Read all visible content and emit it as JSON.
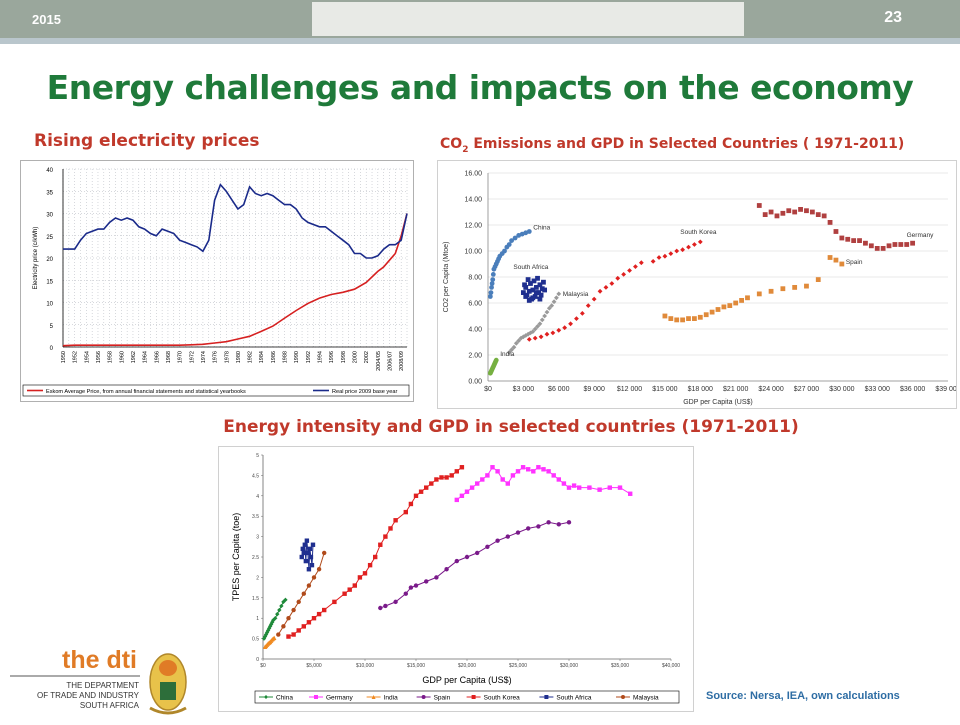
{
  "header": {
    "year": "2015",
    "page_number": "23"
  },
  "title": "Energy challenges and impacts on the economy",
  "chart1_heading": "Rising electricity prices",
  "chart2_heading_prefix": "CO",
  "chart2_heading_sub": "2",
  "chart2_heading_suffix": " Emissions  and  GPD in Selected Countries  ( 1971-2011)",
  "chart3_heading": "Energy intensity and GPD in selected countries (1971-2011)",
  "source": "Source: Nersa, IEA, own calculations",
  "logo": {
    "name": "the dti",
    "line1": "THE DEPARTMENT",
    "line2": "OF TRADE AND INDUSTRY",
    "line3": "SOUTH AFRICA"
  },
  "colors": {
    "title_green": "#1f7a3a",
    "heading_red": "#c0392b",
    "source_blue": "#2e6da4",
    "dti_orange": "#e07b26"
  },
  "chart_data": [
    {
      "type": "line",
      "ylabel": "Electricity price (c/kWh)",
      "ylim": [
        0,
        40
      ],
      "yticks": [
        0,
        5,
        10,
        15,
        20,
        25,
        30,
        35,
        40
      ],
      "categories": [
        "1950",
        "1952",
        "1954",
        "1956",
        "1958",
        "1960",
        "1962",
        "1964",
        "1966",
        "1968",
        "1970",
        "1972",
        "1974",
        "1976",
        "1978",
        "1980",
        "1982",
        "1984",
        "1986",
        "1988",
        "1990",
        "1992",
        "1994",
        "1996",
        "1998",
        "2000",
        "2002",
        "2004/05",
        "2006/07",
        "2008/09"
      ],
      "legend_position": "bottom",
      "series": [
        {
          "name": "Eskom Average Price, from annual financial statements and statistical yearbooks",
          "color": "#d62020",
          "x": [
            1950,
            1952,
            1954,
            1956,
            1958,
            1960,
            1962,
            1964,
            1966,
            1968,
            1970,
            1972,
            1974,
            1976,
            1978,
            1980,
            1982,
            1984,
            1986,
            1988,
            1990,
            1992,
            1994,
            1996,
            1998,
            2000,
            2002,
            2004,
            2005,
            2006,
            2007,
            2008,
            2009
          ],
          "values": [
            0.3,
            0.4,
            0.4,
            0.4,
            0.4,
            0.4,
            0.4,
            0.4,
            0.4,
            0.4,
            0.4,
            0.5,
            0.6,
            0.9,
            1.2,
            1.8,
            2.4,
            3.5,
            4.7,
            6.5,
            8.2,
            9.8,
            11.0,
            11.8,
            12.3,
            13.0,
            14.5,
            17.0,
            18.0,
            19.5,
            21.0,
            25.0,
            30.0
          ]
        },
        {
          "name": "Real price 2009 base year",
          "color": "#1a2a8a",
          "x": [
            1950,
            1951,
            1952,
            1953,
            1954,
            1955,
            1956,
            1957,
            1958,
            1959,
            1960,
            1961,
            1962,
            1963,
            1964,
            1965,
            1966,
            1967,
            1968,
            1969,
            1970,
            1971,
            1972,
            1973,
            1974,
            1975,
            1976,
            1977,
            1978,
            1979,
            1980,
            1981,
            1982,
            1983,
            1984,
            1985,
            1986,
            1987,
            1988,
            1989,
            1990,
            1991,
            1992,
            1993,
            1994,
            1995,
            1996,
            1997,
            1998,
            1999,
            2000,
            2001,
            2002,
            2003,
            2004,
            2005,
            2006,
            2007,
            2008,
            2009
          ],
          "values": [
            22,
            22,
            22,
            24,
            25.5,
            26,
            26.5,
            26.5,
            28,
            29,
            28.5,
            29,
            28.5,
            27,
            26.5,
            25.5,
            25,
            26.5,
            26,
            25.5,
            24,
            23.5,
            23,
            22.5,
            21.5,
            24,
            33,
            36.5,
            35,
            33,
            31,
            32,
            36,
            34.5,
            34,
            34.5,
            34,
            33,
            32,
            32,
            31,
            29,
            28,
            27.5,
            27,
            27,
            26,
            25,
            24,
            23,
            21,
            21,
            20,
            20,
            20.5,
            22,
            23,
            23,
            24,
            30
          ]
        }
      ]
    },
    {
      "type": "scatter",
      "title": "CO2 Emissions and GPD in Selected Countries (1971-2011)",
      "xlabel": "GDP per Capita (US$)",
      "ylabel": "CO2 per Capita (Mtoe)",
      "xlim": [
        0,
        39000
      ],
      "ylim": [
        0,
        16
      ],
      "xticks": [
        "$0",
        "$3 000",
        "$6 000",
        "$9 000",
        "$12 000",
        "$15 000",
        "$18 000",
        "$21 000",
        "$24 000",
        "$27 000",
        "$30 000",
        "$33 000",
        "$36 000",
        "$39 000"
      ],
      "yticks": [
        "0.00",
        "2.00",
        "4.00",
        "6.00",
        "8.00",
        "10.00",
        "12.00",
        "14.00",
        "16.00"
      ],
      "series": [
        {
          "name": "China",
          "color": "#4a7ebb",
          "x": [
            200,
            250,
            300,
            350,
            400,
            450,
            500,
            600,
            700,
            800,
            900,
            1000,
            1200,
            1400,
            1600,
            1800,
            2000,
            2300,
            2600,
            2900,
            3200,
            3500
          ],
          "values": [
            6.5,
            6.8,
            7.2,
            7.5,
            7.8,
            8.2,
            8.6,
            8.8,
            9.0,
            9.2,
            9.4,
            9.6,
            9.8,
            10.0,
            10.3,
            10.5,
            10.8,
            11.0,
            11.2,
            11.3,
            11.4,
            11.5
          ]
        },
        {
          "name": "South Africa",
          "color": "#1f2f8f",
          "x": [
            3000,
            3100,
            3200,
            3300,
            3400,
            3500,
            3600,
            3700,
            3800,
            3900,
            4000,
            4100,
            4200,
            4300,
            4400,
            4500,
            4600,
            4700,
            4800,
            3200,
            3500,
            3800,
            4100,
            4400
          ],
          "values": [
            6.8,
            7.4,
            7.2,
            6.6,
            7.8,
            6.9,
            7.5,
            6.3,
            7.0,
            7.7,
            6.5,
            7.2,
            7.9,
            6.8,
            7.4,
            6.6,
            7.1,
            7.6,
            7.0,
            6.5,
            6.2,
            6.4,
            6.8,
            6.3
          ]
        },
        {
          "name": "Malaysia",
          "color": "#9a9a9a",
          "x": [
            1800,
            2000,
            2200,
            2400,
            2600,
            2800,
            3000,
            3200,
            3400,
            3600,
            3800,
            4000,
            4200,
            4400,
            4600,
            4800,
            5000,
            5200,
            5400,
            5600,
            5800,
            6000
          ],
          "values": [
            2.2,
            2.4,
            2.6,
            2.9,
            3.1,
            3.3,
            3.4,
            3.5,
            3.6,
            3.7,
            3.8,
            4.0,
            4.2,
            4.4,
            4.7,
            5.0,
            5.3,
            5.6,
            5.8,
            6.1,
            6.4,
            6.7
          ]
        },
        {
          "name": "India",
          "color": "#76b041",
          "x": [
            200,
            250,
            300,
            350,
            400,
            450,
            500,
            550,
            600,
            650,
            700
          ],
          "values": [
            0.6,
            0.7,
            0.8,
            0.9,
            1.0,
            1.1,
            1.2,
            1.3,
            1.4,
            1.5,
            1.6
          ]
        },
        {
          "name": "South Korea",
          "color": "#e02020",
          "x": [
            3500,
            4000,
            4500,
            5000,
            5500,
            6000,
            6500,
            7000,
            7500,
            8000,
            8500,
            9000,
            9500,
            10000,
            10500,
            11000,
            11500,
            12000,
            12500,
            13000,
            14000,
            14500,
            15000,
            15500,
            16000,
            16500,
            17000,
            17500,
            18000
          ],
          "values": [
            3.2,
            3.3,
            3.4,
            3.6,
            3.7,
            3.9,
            4.1,
            4.4,
            4.8,
            5.2,
            5.8,
            6.3,
            6.9,
            7.2,
            7.5,
            7.9,
            8.2,
            8.5,
            8.8,
            9.1,
            9.2,
            9.5,
            9.6,
            9.8,
            10.0,
            10.1,
            10.3,
            10.5,
            10.7
          ]
        },
        {
          "name": "Spain",
          "color": "#e08a3a",
          "x": [
            15000,
            15500,
            16000,
            16500,
            17000,
            17500,
            18000,
            18500,
            19000,
            19500,
            20000,
            20500,
            21000,
            21500,
            22000,
            23000,
            24000,
            25000,
            26000,
            27000,
            28000,
            29000,
            29500,
            30000
          ],
          "values": [
            5.0,
            4.8,
            4.7,
            4.7,
            4.8,
            4.8,
            4.9,
            5.1,
            5.3,
            5.5,
            5.7,
            5.8,
            6.0,
            6.2,
            6.4,
            6.7,
            6.9,
            7.1,
            7.2,
            7.3,
            7.8,
            9.5,
            9.3,
            9.0
          ]
        },
        {
          "name": "Germany",
          "color": "#b04040",
          "x": [
            23000,
            23500,
            24000,
            24500,
            25000,
            25500,
            26000,
            26500,
            27000,
            27500,
            28000,
            28500,
            29000,
            29500,
            30000,
            30500,
            31000,
            31500,
            32000,
            32500,
            33000,
            33500,
            34000,
            34500,
            35000,
            35500,
            36000
          ],
          "values": [
            13.5,
            12.8,
            13.0,
            12.7,
            12.9,
            13.1,
            13.0,
            13.2,
            13.1,
            13.0,
            12.8,
            12.7,
            12.2,
            11.5,
            11.0,
            10.9,
            10.8,
            10.8,
            10.6,
            10.4,
            10.2,
            10.2,
            10.4,
            10.5,
            10.5,
            10.5,
            10.6
          ]
        }
      ]
    },
    {
      "type": "scatter",
      "xlabel": "GDP per Capita (US$)",
      "ylabel": "TPES per Capita (toe)",
      "xlim": [
        0,
        40000
      ],
      "ylim": [
        0,
        5
      ],
      "xticks": [
        "$0",
        "$5,000",
        "$10,000",
        "$15,000",
        "$20,000",
        "$25,000",
        "$30,000",
        "$35,000",
        "$40,000"
      ],
      "yticks": [
        "0",
        "0.5",
        "1",
        "1.5",
        "2",
        "2.5",
        "3",
        "3.5",
        "4",
        "4.5",
        "5"
      ],
      "legend_position": "bottom",
      "series": [
        {
          "name": "China",
          "color": "#1f8a3a",
          "x": [
            100,
            200,
            300,
            400,
            500,
            600,
            700,
            800,
            900,
            1000,
            1200,
            1400,
            1600,
            1800,
            2000,
            2200
          ],
          "values": [
            0.5,
            0.55,
            0.6,
            0.65,
            0.7,
            0.75,
            0.8,
            0.85,
            0.9,
            0.95,
            1.0,
            1.1,
            1.2,
            1.3,
            1.4,
            1.45
          ]
        },
        {
          "name": "Germany",
          "color": "#ff33ff",
          "x": [
            19000,
            19500,
            20000,
            20500,
            21000,
            21500,
            22000,
            22500,
            23000,
            23500,
            24000,
            24500,
            25000,
            25500,
            26000,
            26500,
            27000,
            27500,
            28000,
            28500,
            29000,
            29500,
            30000,
            30500,
            31000,
            32000,
            33000,
            34000,
            35000,
            36000
          ],
          "values": [
            3.9,
            4.0,
            4.1,
            4.2,
            4.3,
            4.4,
            4.5,
            4.7,
            4.6,
            4.4,
            4.3,
            4.5,
            4.6,
            4.7,
            4.65,
            4.6,
            4.7,
            4.65,
            4.6,
            4.5,
            4.4,
            4.3,
            4.2,
            4.25,
            4.2,
            4.2,
            4.15,
            4.2,
            4.2,
            4.05
          ]
        },
        {
          "name": "India",
          "color": "#f08a20",
          "x": [
            200,
            300,
            400,
            500,
            600,
            700,
            800,
            900,
            1000,
            1100
          ],
          "values": [
            0.3,
            0.32,
            0.35,
            0.38,
            0.4,
            0.42,
            0.45,
            0.48,
            0.5,
            0.52
          ]
        },
        {
          "name": "Spain",
          "color": "#7a1a8a",
          "x": [
            11500,
            12000,
            13000,
            14000,
            14500,
            15000,
            16000,
            17000,
            18000,
            19000,
            20000,
            21000,
            22000,
            23000,
            24000,
            25000,
            26000,
            27000,
            28000,
            29000,
            30000
          ],
          "values": [
            1.25,
            1.3,
            1.4,
            1.6,
            1.75,
            1.8,
            1.9,
            2.0,
            2.2,
            2.4,
            2.5,
            2.6,
            2.75,
            2.9,
            3.0,
            3.1,
            3.2,
            3.25,
            3.35,
            3.3,
            3.35
          ]
        },
        {
          "name": "South Korea",
          "color": "#e02020",
          "x": [
            2500,
            3000,
            3500,
            4000,
            4500,
            5000,
            5500,
            6000,
            7000,
            8000,
            8500,
            9000,
            9500,
            10000,
            10500,
            11000,
            11500,
            12000,
            12500,
            13000,
            14000,
            14500,
            15000,
            15500,
            16000,
            16500,
            17000,
            17500,
            18000,
            18500,
            19000,
            19500
          ],
          "values": [
            0.55,
            0.6,
            0.7,
            0.8,
            0.9,
            1.0,
            1.1,
            1.2,
            1.4,
            1.6,
            1.7,
            1.8,
            2.0,
            2.1,
            2.3,
            2.5,
            2.8,
            3.0,
            3.2,
            3.4,
            3.6,
            3.8,
            4.0,
            4.1,
            4.2,
            4.3,
            4.4,
            4.45,
            4.45,
            4.5,
            4.6,
            4.7
          ]
        },
        {
          "name": "South Africa",
          "color": "#1f2f8f",
          "x": [
            3800,
            3900,
            4000,
            4100,
            4200,
            4300,
            4400,
            4500,
            4600,
            4700,
            4800,
            4900
          ],
          "values": [
            2.5,
            2.7,
            2.6,
            2.8,
            2.4,
            2.9,
            2.6,
            2.2,
            2.7,
            2.5,
            2.3,
            2.8
          ]
        },
        {
          "name": "Malaysia",
          "color": "#b04a1a",
          "x": [
            1500,
            2000,
            2500,
            3000,
            3500,
            4000,
            4500,
            5000,
            5500,
            6000
          ],
          "values": [
            0.6,
            0.8,
            1.0,
            1.2,
            1.4,
            1.6,
            1.8,
            2.0,
            2.2,
            2.6
          ]
        }
      ]
    }
  ]
}
